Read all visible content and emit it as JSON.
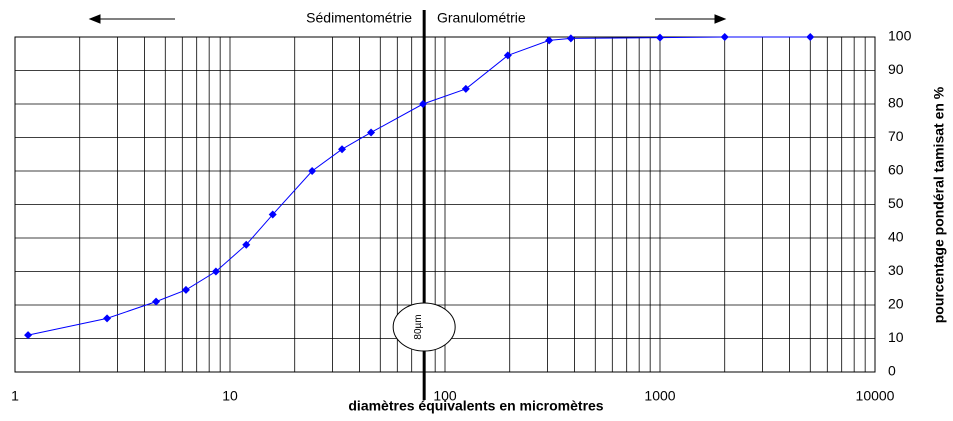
{
  "chart_data": {
    "type": "line",
    "x_label": "diamètres équivalents en micromètres",
    "y_label": "pourcentage pondéral    tamisat en %",
    "annotations": {
      "left": "Sédimentométrie",
      "right": "Granulométrie",
      "marker": "80µm",
      "marker_x": 80
    },
    "x": [
      1.15,
      2.68,
      4.53,
      6.24,
      8.6,
      11.9,
      15.8,
      24.1,
      33.2,
      45.3,
      79,
      125,
      196,
      305,
      385,
      1000,
      2000,
      5000
    ],
    "series": [
      {
        "name": "tamisat",
        "color": "#0000ff",
        "values": [
          11,
          16,
          21,
          24.5,
          30,
          38,
          47,
          60,
          66.5,
          71.5,
          80,
          84.5,
          94.5,
          99,
          99.6,
          99.8,
          100,
          100
        ]
      }
    ],
    "xlim": [
      1,
      10000
    ],
    "xticks": [
      1,
      10,
      100,
      1000,
      10000
    ],
    "xscale": "log",
    "ylim": [
      0,
      100
    ],
    "yticks": [
      0,
      10,
      20,
      30,
      40,
      50,
      60,
      70,
      80,
      90,
      100
    ],
    "grid": true
  }
}
